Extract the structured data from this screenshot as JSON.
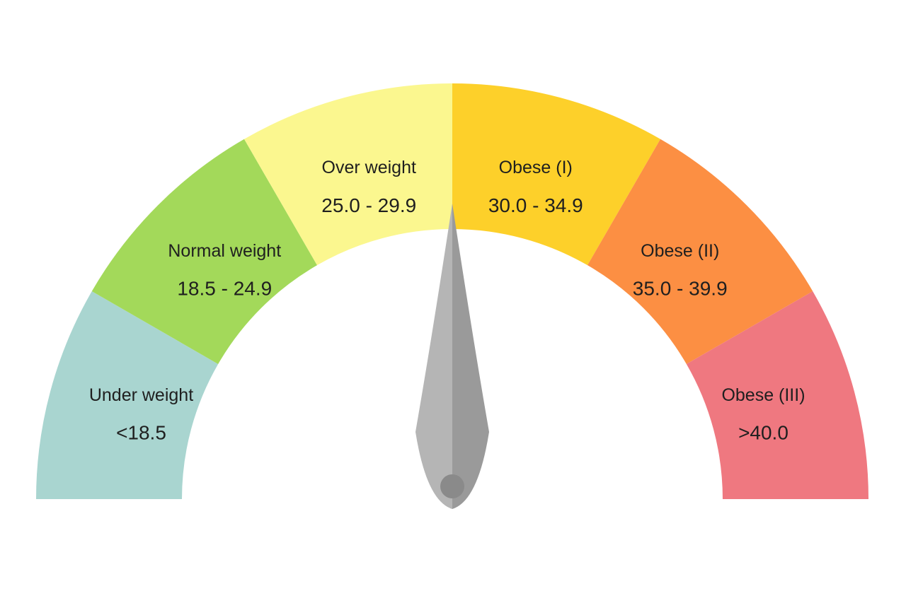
{
  "gauge": {
    "segments": [
      {
        "name": "Under weight",
        "range": "<18.5",
        "color": "#a9d5d0"
      },
      {
        "name": "Normal weight",
        "range": "18.5 - 24.9",
        "color": "#a3d95a"
      },
      {
        "name": "Over weight",
        "range": "25.0 - 29.9",
        "color": "#fbf78f"
      },
      {
        "name": "Obese (I)",
        "range": "30.0 - 34.9",
        "color": "#fdd02a"
      },
      {
        "name": "Obese (II)",
        "range": "35.0 - 39.9",
        "color": "#fc8f43"
      },
      {
        "name": "Obese (III)",
        "range": ">40.0",
        "color": "#ef7880"
      }
    ],
    "needle_position": 0.5,
    "needle_color_light": "#b5b5b5",
    "needle_color_dark": "#9a9a9a",
    "hub_color": "#8a8a8a"
  }
}
